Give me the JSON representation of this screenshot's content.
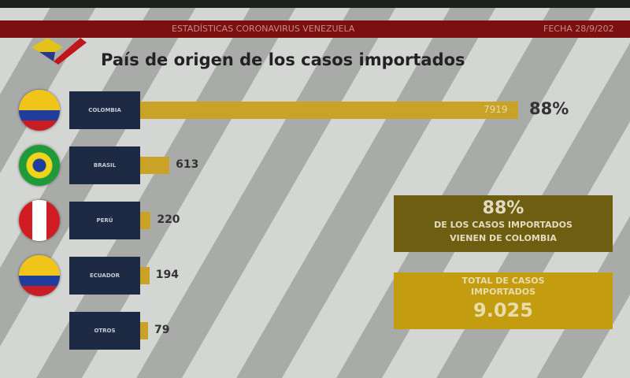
{
  "header": {
    "banner_title": "ESTADÍSTICAS CORONAVIRUS VENEZUELA",
    "date": "FECHA 28/9/202"
  },
  "chart_data": {
    "type": "bar",
    "orientation": "horizontal",
    "title": "País de origen de los casos importados",
    "categories": [
      "COLOMBIA",
      "BRASIL",
      "PERÚ",
      "ECUADOR",
      "OTROS"
    ],
    "values": [
      7919,
      613,
      220,
      194,
      79
    ],
    "value_labels": [
      "7919",
      "613",
      "220",
      "194",
      "79"
    ],
    "highlight_percent": "88%",
    "colors": {
      "bar": "#c9a227",
      "label_box": "#1e2a44"
    }
  },
  "summary": {
    "percent": "88%",
    "percent_text_1": "DE LOS CASOS IMPORTADOS",
    "percent_text_2": "VIENEN DE COLOMBIA",
    "total_label_1": "TOTAL DE CASOS",
    "total_label_2": "IMPORTADOS",
    "total_value": "9.025"
  }
}
